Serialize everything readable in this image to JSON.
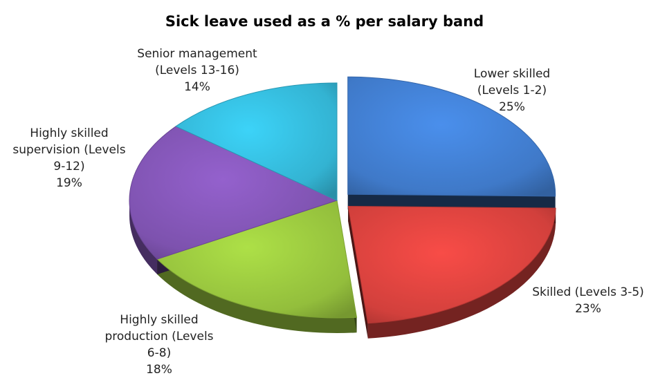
{
  "chart_data": {
    "type": "pie",
    "title": "Sick leave used as a % per salary band",
    "unit": "%",
    "slices": [
      {
        "label_lines": [
          "Lower skilled",
          "(Levels 1-2)"
        ],
        "value": 25,
        "display": "25%",
        "color": "#3F79C8",
        "exploded": true
      },
      {
        "label_lines": [
          "Skilled (Levels 3-5)"
        ],
        "value": 23,
        "display": "23%",
        "color": "#D2403C",
        "exploded": true
      },
      {
        "label_lines": [
          "Highly skilled",
          "production (Levels",
          "6-8)"
        ],
        "value": 18,
        "display": "18%",
        "color": "#93BE3C",
        "exploded": false
      },
      {
        "label_lines": [
          "Highly skilled",
          "supervision (Levels",
          "9-12)"
        ],
        "value": 19,
        "display": "19%",
        "color": "#7D52AE",
        "exploded": false
      },
      {
        "label_lines": [
          "Senior management",
          "(Levels 13-16)"
        ],
        "value": 14,
        "display": "14%",
        "color": "#33B3D2",
        "exploded": false
      }
    ],
    "start_angle_deg": -90,
    "direction": "clockwise",
    "style": "3d-pie",
    "legend": "none"
  }
}
